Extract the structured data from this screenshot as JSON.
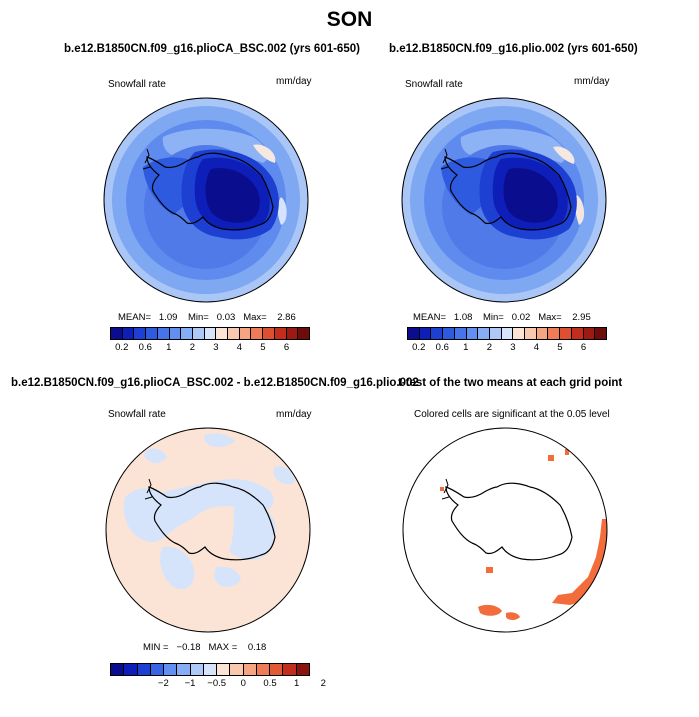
{
  "season_title": "SON",
  "panels": {
    "top_left": {
      "title": "b.e12.B1850CN.f09_g16.plioCA_BSC.002 (yrs 601-650)",
      "variable": "Snowfall rate",
      "units": "mm/day",
      "stats": {
        "mean_label": "MEAN=",
        "mean": "1.09",
        "min_label": "Min=",
        "min": "0.03",
        "max_label": "Max=",
        "max": "2.86"
      }
    },
    "top_right": {
      "title": "b.e12.B1850CN.f09_g16.plio.002 (yrs 601-650)",
      "variable": "Snowfall rate",
      "units": "mm/day",
      "stats": {
        "mean_label": "MEAN=",
        "mean": "1.08",
        "min_label": "Min=",
        "min": "0.02",
        "max_label": "Max=",
        "max": "2.95"
      }
    },
    "bottom_left": {
      "title": "b.e12.B1850CN.f09_g16.plioCA_BSC.002 - b.e12.B1850CN.f09_g16.plio.002",
      "variable": "Snowfall rate",
      "units": "mm/day",
      "stats": {
        "min_label": "MIN =",
        "min": "−0.18",
        "max_label": "MAX =",
        "max": "0.18"
      }
    },
    "bottom_right": {
      "title": "t-test of the two means at each grid point",
      "subtitle": "Colored cells are significant at the 0.05 level"
    }
  },
  "colorbars": {
    "snowfall": {
      "colors": [
        "#0a0d8e",
        "#0d1fb8",
        "#1d3fd2",
        "#2e5ae0",
        "#4674ea",
        "#6290f0",
        "#86aef5",
        "#aec8f8",
        "#d6e4fb",
        "#fbe4d6",
        "#f9c8ae",
        "#f5a582",
        "#ef7b57",
        "#de4e30",
        "#c42d1c",
        "#9c1a12",
        "#6e0c0c"
      ],
      "tick_labels": [
        "0.2",
        "0.6",
        "1",
        "2",
        "3",
        "4",
        "5",
        "6"
      ]
    },
    "difference": {
      "colors": [
        "#0a0d8e",
        "#0d1fb8",
        "#1d3fd2",
        "#3a64e6",
        "#6290f0",
        "#86aef5",
        "#aec8f8",
        "#d6e4fb",
        "#fbe4d6",
        "#f9c8ae",
        "#f5a582",
        "#ef7b57",
        "#e25a35",
        "#c42d1c",
        "#8a1410"
      ],
      "tick_labels": [
        "−2",
        "−1",
        "−0.5",
        "0",
        "0.5",
        "1",
        "2"
      ]
    }
  }
}
